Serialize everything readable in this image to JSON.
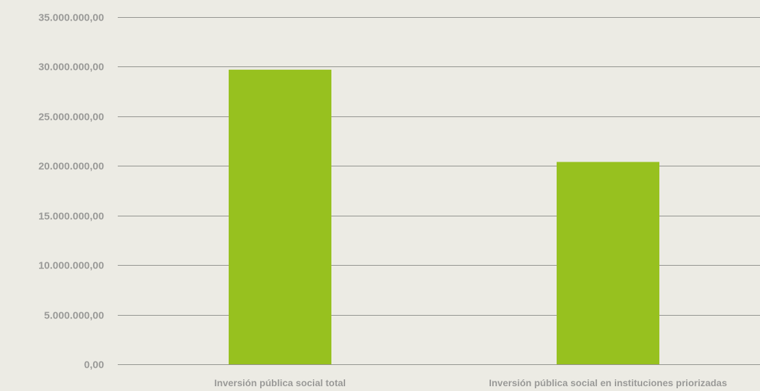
{
  "chart_data": {
    "type": "bar",
    "title": "",
    "xlabel": "",
    "ylabel": "",
    "categories": [
      "Inversión pública social total",
      "Inversión pública social en instituciones priorizadas"
    ],
    "values": [
      29700000,
      20400000
    ],
    "ylim": [
      0,
      35000000
    ],
    "yticks": [
      0,
      5000000,
      10000000,
      15000000,
      20000000,
      25000000,
      30000000,
      35000000
    ],
    "ytick_labels": [
      "0,00",
      "5.000.000,00",
      "10.000.000,00",
      "15.000.000,00",
      "20.000.000,00",
      "25.000.000,00",
      "30.000.000,00",
      "35.000.000,00"
    ],
    "grid": true,
    "legend": "none",
    "bar_color": "#97c11f",
    "grid_color": "#8f908c",
    "label_color": "#9a9a98",
    "background_color": "#ecebe4"
  }
}
